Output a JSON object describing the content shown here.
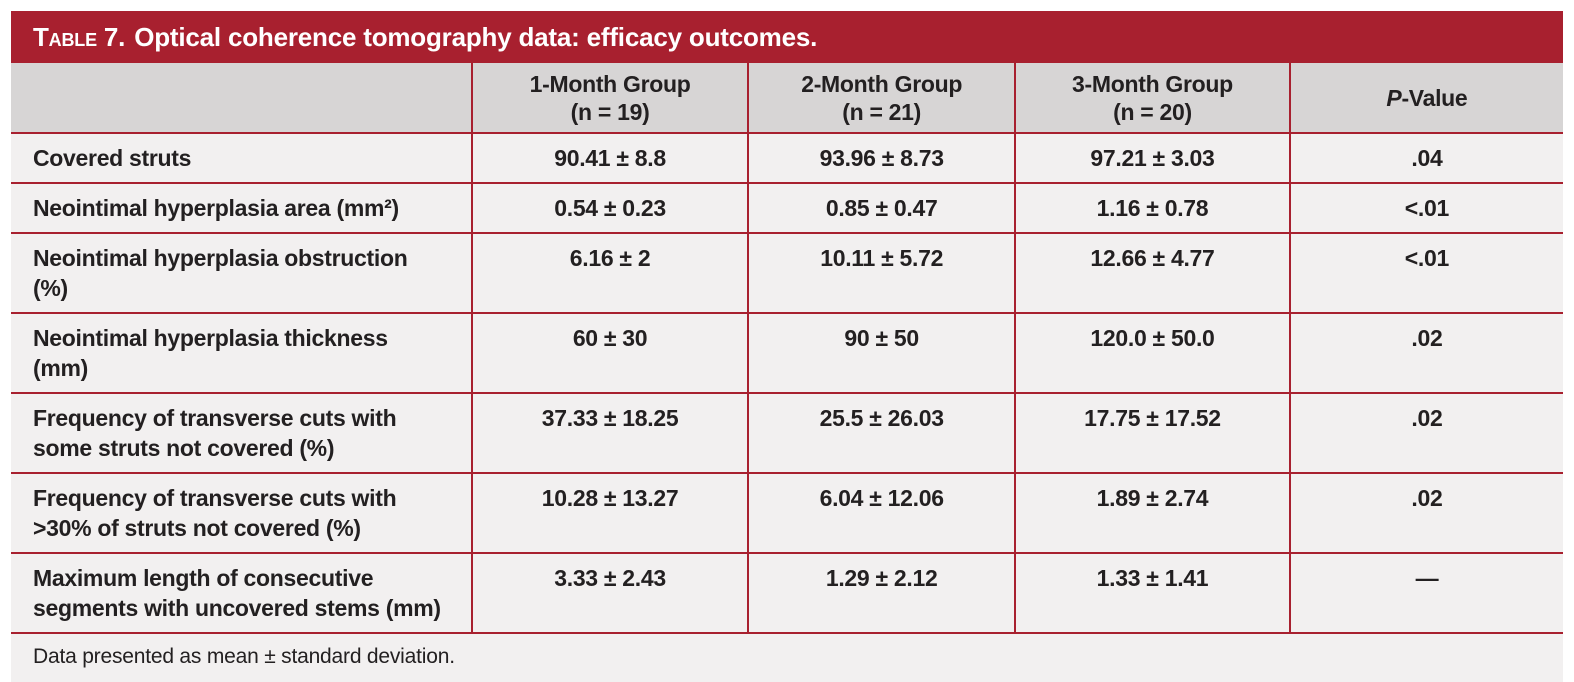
{
  "colors": {
    "accent_red": "#A8202F",
    "header_bg": "#D7D5D5",
    "row_bg": "#F2F0F0",
    "text": "#232021"
  },
  "table": {
    "title_label": "Table 7.",
    "title_text": "Optical coherence tomography data: efficacy outcomes.",
    "columns": [
      {
        "line1": "1-Month Group",
        "line2": "(n = 19)"
      },
      {
        "line1": "2-Month Group",
        "line2": "(n = 21)"
      },
      {
        "line1": "3-Month Group",
        "line2": "(n = 20)"
      },
      {
        "line1": "P-Value",
        "line2": ""
      }
    ],
    "rows": [
      {
        "label": "Covered struts",
        "values": [
          "90.41 ± 8.8",
          "93.96 ± 8.73",
          "97.21 ± 3.03",
          ".04"
        ]
      },
      {
        "label": "Neointimal hyperplasia area (mm²)",
        "values": [
          "0.54 ± 0.23",
          "0.85 ± 0.47",
          "1.16 ± 0.78",
          "<.01"
        ]
      },
      {
        "label": "Neointimal hyperplasia obstruction (%)",
        "values": [
          "6.16 ± 2",
          "10.11 ± 5.72",
          "12.66 ± 4.77",
          "<.01"
        ]
      },
      {
        "label": "Neointimal hyperplasia thickness (mm)",
        "values": [
          "60 ± 30",
          "90 ± 50",
          "120.0 ± 50.0",
          ".02"
        ]
      },
      {
        "label": "Frequency of transverse cuts with some struts not covered (%)",
        "values": [
          "37.33 ± 18.25",
          "25.5 ± 26.03",
          "17.75 ± 17.52",
          ".02"
        ]
      },
      {
        "label": "Frequency of transverse cuts with >30% of struts not covered (%)",
        "values": [
          "10.28 ± 13.27",
          "6.04 ± 12.06",
          "1.89 ± 2.74",
          ".02"
        ]
      },
      {
        "label": "Maximum length of consecutive segments with uncovered stems (mm)",
        "values": [
          "3.33 ± 2.43",
          "1.29 ± 2.12",
          "1.33 ± 1.41",
          "—"
        ]
      }
    ],
    "footnote": "Data presented as mean ± standard deviation."
  }
}
